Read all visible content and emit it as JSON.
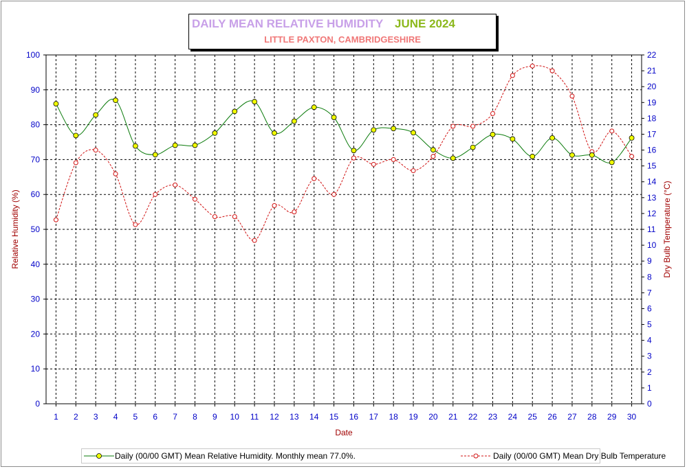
{
  "title": {
    "main": "DAILY MEAN RELATIVE HUMIDITY",
    "month": "JUNE 2024",
    "subtitle": "LITTLE PAXTON, CAMBRIDGESHIRE"
  },
  "colors": {
    "title_main": "#c8a0e8",
    "title_month": "#8cb81c",
    "subtitle": "#f07878",
    "humidity_line": "#0a7a0a",
    "humidity_marker": "#f0ff00",
    "temperature_line": "#d01010",
    "axis_label": "#a00000",
    "tick_label": "#0000c8",
    "grid": "#000000"
  },
  "chart_data": {
    "type": "line",
    "title": "DAILY MEAN RELATIVE HUMIDITY JUNE 2024",
    "subtitle": "LITTLE PAXTON, CAMBRIDGESHIRE",
    "xlabel": "Date",
    "ylabel_left": "Relative Humidity (%)",
    "ylabel_right": "Dry Bulb Temperature (°C)",
    "x": [
      1,
      2,
      3,
      4,
      5,
      6,
      7,
      8,
      9,
      10,
      11,
      12,
      13,
      14,
      15,
      16,
      17,
      18,
      19,
      20,
      21,
      22,
      23,
      24,
      25,
      26,
      27,
      28,
      29,
      30
    ],
    "ylim_left": [
      0,
      100
    ],
    "yticks_left": [
      0,
      10,
      20,
      30,
      40,
      50,
      60,
      70,
      80,
      90,
      100
    ],
    "ylim_right": [
      0,
      22
    ],
    "yticks_right": [
      0,
      1,
      2,
      3,
      4,
      5,
      6,
      7,
      8,
      9,
      10,
      11,
      12,
      13,
      14,
      15,
      16,
      17,
      18,
      19,
      20,
      21,
      22
    ],
    "grid": true,
    "legend_position": "bottom",
    "series": [
      {
        "name": "Daily (00/00 GMT) Mean Relative Humidity. Monthly mean 77.0%.",
        "axis": "left",
        "values": [
          86.0,
          76.9,
          82.8,
          87.0,
          73.9,
          71.4,
          74.1,
          74.1,
          77.6,
          83.8,
          86.6,
          77.6,
          81.0,
          85.0,
          82.1,
          72.6,
          78.5,
          78.9,
          77.7,
          72.8,
          70.4,
          73.5,
          77.2,
          75.9,
          70.9,
          76.2,
          71.3,
          71.3,
          69.2,
          76.2
        ]
      },
      {
        "name": "Daily (00/00 GMT) Mean Dry Bulb Temperature",
        "axis": "right",
        "values": [
          11.6,
          15.2,
          16.0,
          14.5,
          11.3,
          13.2,
          13.8,
          12.9,
          11.8,
          11.8,
          10.3,
          12.5,
          12.1,
          14.2,
          13.2,
          15.5,
          15.1,
          15.4,
          14.7,
          15.6,
          17.5,
          17.5,
          18.3,
          20.7,
          21.3,
          21.0,
          19.4,
          15.9,
          17.2,
          15.6
        ]
      }
    ]
  }
}
